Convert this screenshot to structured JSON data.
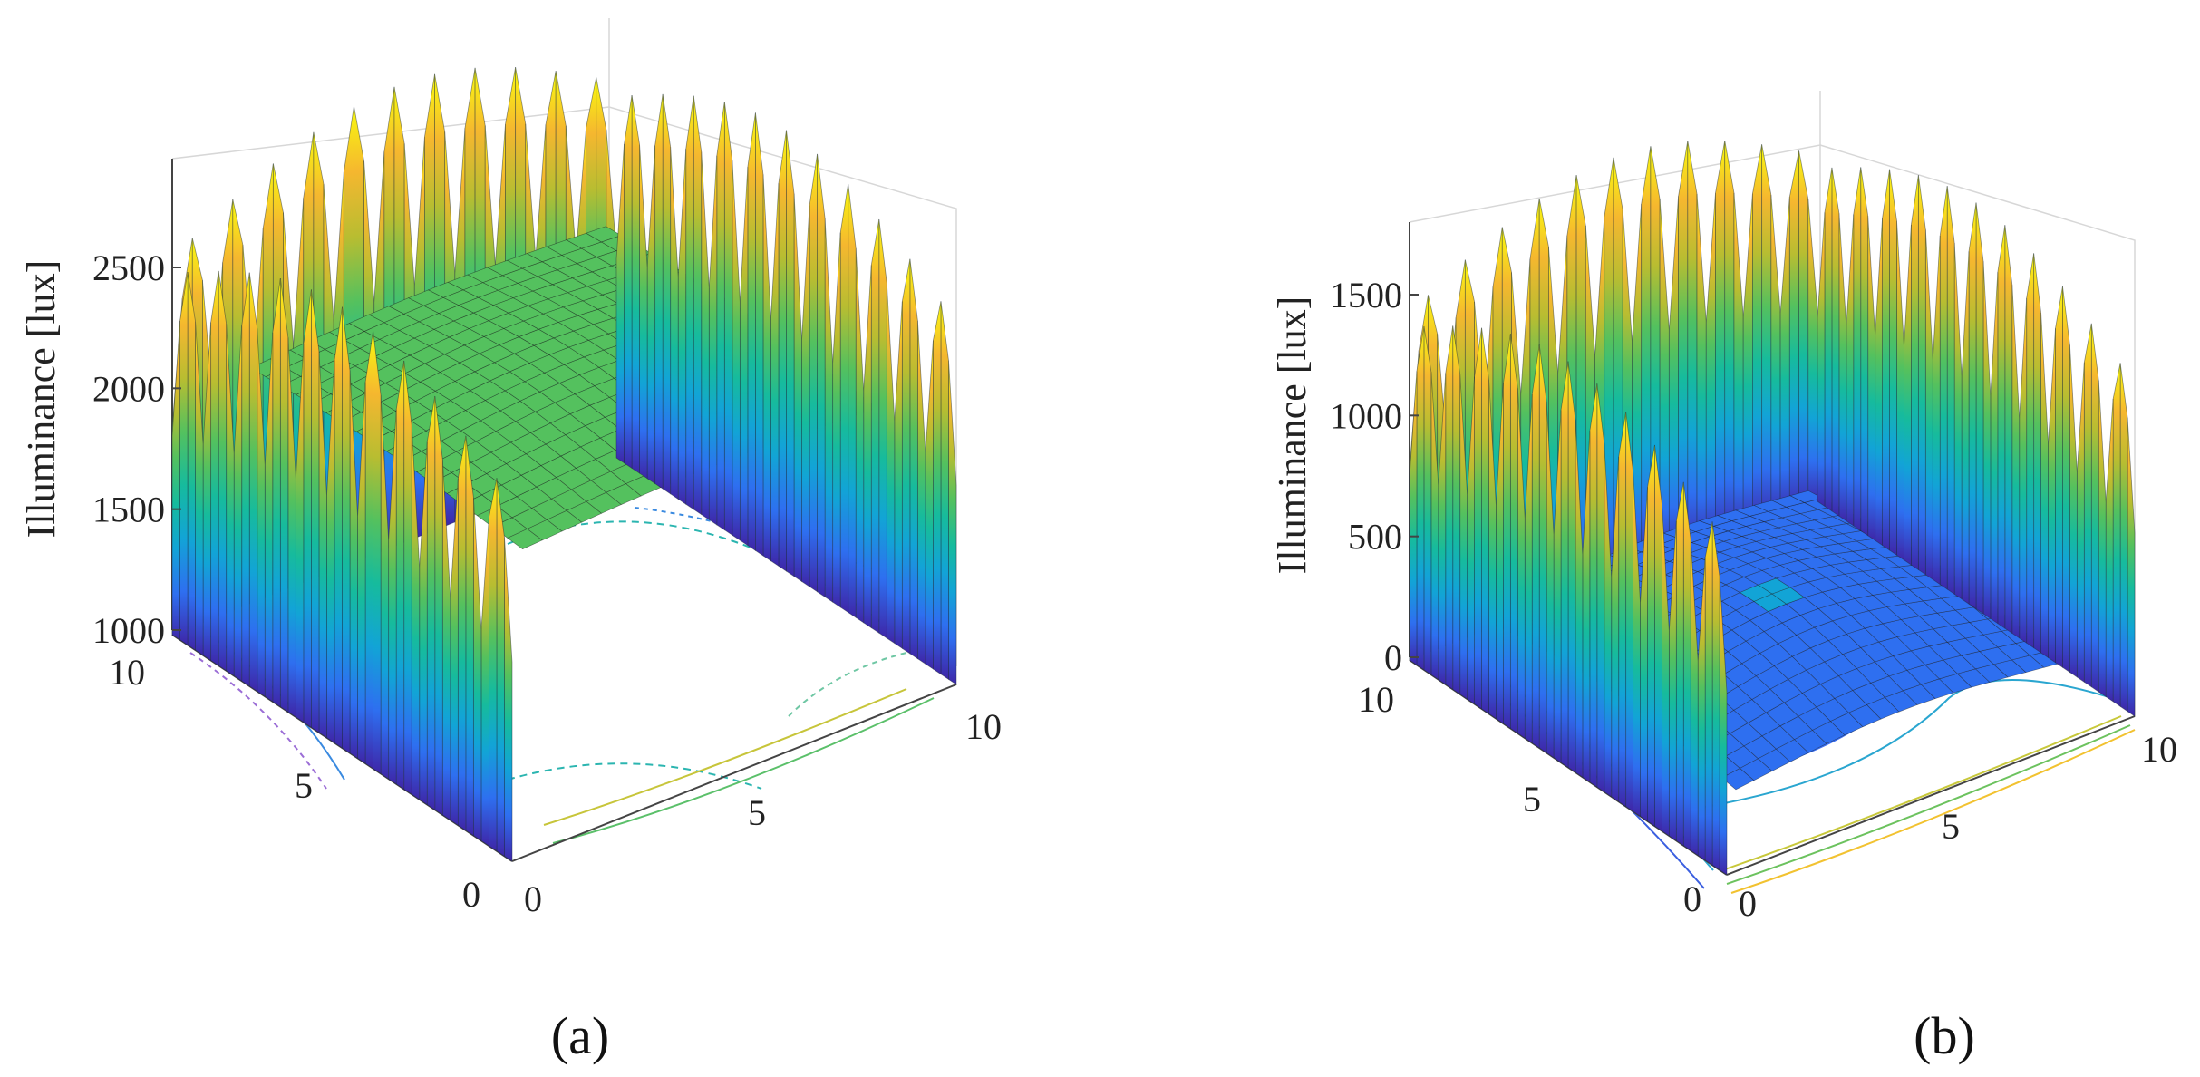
{
  "chart_data": [
    {
      "type": "surface3d",
      "panel": "a",
      "panel_label": "(a)",
      "zlabel": "Illuminance [lux]",
      "zticks": [
        "1000",
        "1500",
        "2000",
        "2500"
      ],
      "zlim": [
        1000,
        2950
      ],
      "xticks": [
        "0",
        "5",
        "10"
      ],
      "yticks": [
        "0",
        "5",
        "10"
      ],
      "xlim": [
        0,
        10
      ],
      "ylim": [
        0,
        10
      ],
      "center_value": 2100,
      "wall_peak_value": 2900,
      "wall_base_value": 1000,
      "peaks_per_wall": 11,
      "colormap": [
        "#3e26a8",
        "#2e6ff0",
        "#12a4d6",
        "#16bb9d",
        "#54c15e",
        "#b8bd31",
        "#f5b72f",
        "#f9fb0e"
      ],
      "contour_floor": true
    },
    {
      "type": "surface3d",
      "panel": "b",
      "panel_label": "(b)",
      "zlabel": "Illuminance [lux]",
      "zticks": [
        "0",
        "500",
        "1000",
        "1500"
      ],
      "zlim": [
        0,
        1800
      ],
      "xticks": [
        "0",
        "5",
        "10"
      ],
      "yticks": [
        "0",
        "5",
        "10"
      ],
      "xlim": [
        0,
        10
      ],
      "ylim": [
        0,
        10
      ],
      "center_value": 150,
      "wall_peak_value": 1750,
      "wall_base_value": 0,
      "peaks_per_wall": 11,
      "colormap": [
        "#3e26a8",
        "#2e6ff0",
        "#12a4d6",
        "#16bb9d",
        "#54c15e",
        "#b8bd31",
        "#f5b72f",
        "#f9fb0e"
      ],
      "contour_floor": true
    }
  ]
}
